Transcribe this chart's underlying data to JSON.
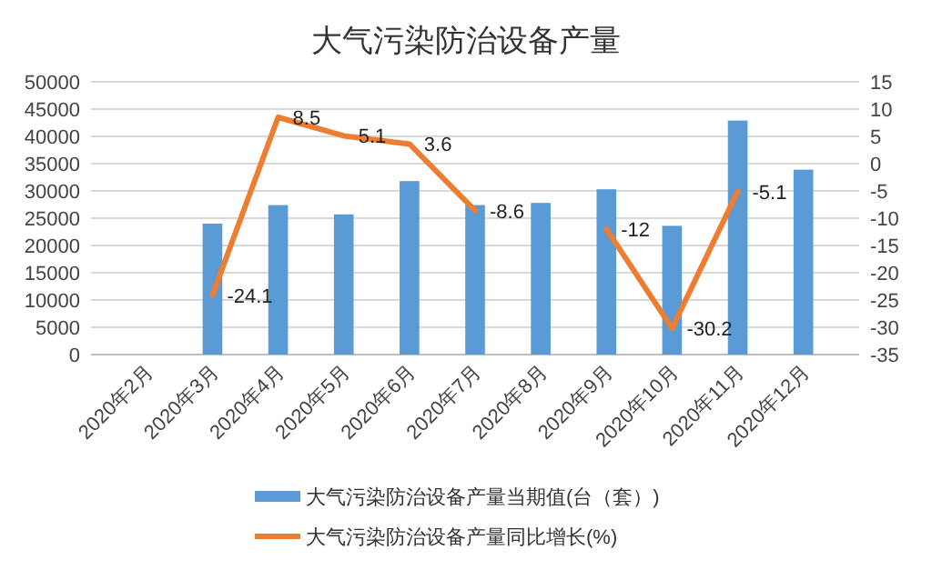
{
  "chart_data": {
    "type": "bar",
    "title": "大气污染防治设备产量",
    "categories": [
      "2020年2月",
      "2020年3月",
      "2020年4月",
      "2020年5月",
      "2020年6月",
      "2020年7月",
      "2020年8月",
      "2020年9月",
      "2020年10月",
      "2020年11月",
      "2020年12月"
    ],
    "series": [
      {
        "name": "大气污染防治设备产量当期值(台（套）)",
        "color": "#5b9bd5",
        "values": [
          null,
          24000,
          27400,
          25700,
          31800,
          27400,
          27800,
          30300,
          23600,
          42900,
          33900
        ]
      },
      {
        "name": "大气污染防治设备产量同比增长(%)",
        "type": "line",
        "axis": "y2",
        "color": "#ed7d31",
        "values": [
          null,
          -24.1,
          8.5,
          5.1,
          3.6,
          -8.6,
          null,
          -12,
          -30.2,
          -5.1,
          null
        ],
        "value_labels": [
          null,
          "-24.1",
          "8.5",
          "5.1",
          "3.6",
          "-8.6",
          null,
          "-12",
          "-30.2",
          "-5.1",
          null
        ]
      }
    ],
    "ylim": [
      0,
      50000
    ],
    "yticks": [
      0,
      5000,
      10000,
      15000,
      20000,
      25000,
      30000,
      35000,
      40000,
      45000,
      50000
    ],
    "y2lim": [
      -35,
      15
    ],
    "y2ticks": [
      -35,
      -30,
      -25,
      -20,
      -15,
      -10,
      -5,
      0,
      5,
      10,
      15
    ],
    "grid": "y",
    "legend": "bottom"
  }
}
